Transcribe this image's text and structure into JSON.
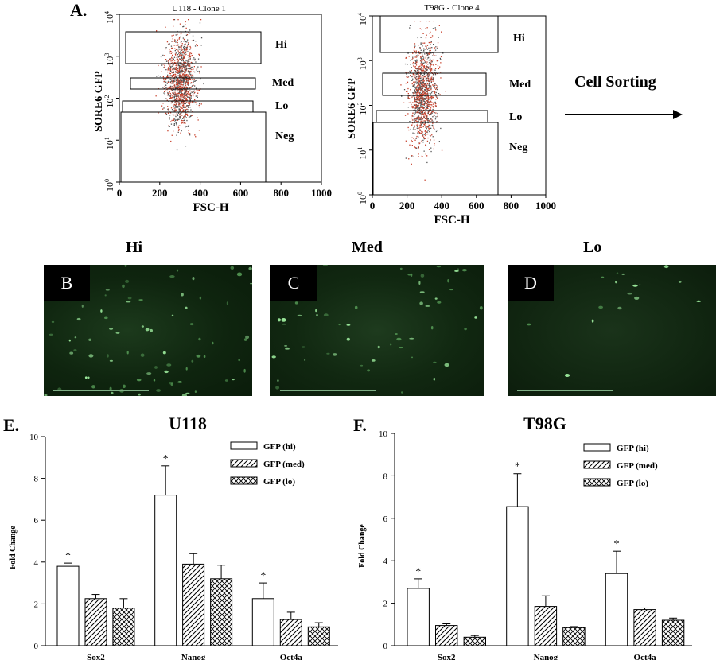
{
  "figure": {
    "panel_A_letter": "A.",
    "panel_E_letter": "E.",
    "panel_F_letter": "F.",
    "cell_sorting_label": "Cell Sorting"
  },
  "flow_panels": [
    {
      "title": "U118 - Clone 1",
      "ylabel": "SORE6 GFP",
      "xlabel": "FSC-H",
      "xticks": [
        "0",
        "200",
        "400",
        "600",
        "800",
        "1000"
      ],
      "gates": [
        "Hi",
        "Med",
        "Lo",
        "Neg"
      ]
    },
    {
      "title": "T98G - Clone 4",
      "ylabel": "SORE6 GFP",
      "xlabel": "FSC-H",
      "xticks": [
        "0",
        "200",
        "400",
        "600",
        "800",
        "1000"
      ],
      "gates": [
        "Hi",
        "Med",
        "Lo",
        "Neg"
      ]
    }
  ],
  "microscopy": [
    {
      "title": "Hi",
      "label": "B"
    },
    {
      "title": "Med",
      "label": "C"
    },
    {
      "title": "Lo",
      "label": "D"
    }
  ],
  "chart_data": [
    {
      "type": "bar",
      "title": "U118",
      "xlabel": "",
      "ylabel": "Fold Change",
      "ylim": [
        0,
        10
      ],
      "yticks": [
        0,
        2,
        4,
        6,
        8,
        10
      ],
      "categories": [
        "Sox2",
        "Nanog",
        "Oct4a"
      ],
      "series": [
        {
          "name": "GFP (hi)",
          "pattern": "none",
          "values": [
            3.8,
            7.2,
            2.25
          ],
          "errors": [
            0.15,
            1.4,
            0.75
          ],
          "significance": [
            "*",
            "*",
            "*"
          ]
        },
        {
          "name": "GFP (med)",
          "pattern": "hatch",
          "values": [
            2.25,
            3.9,
            1.25
          ],
          "errors": [
            0.2,
            0.5,
            0.35
          ],
          "significance": [
            "",
            "",
            ""
          ]
        },
        {
          "name": "GFP (lo)",
          "pattern": "crosshatch",
          "values": [
            1.8,
            3.2,
            0.9
          ],
          "errors": [
            0.45,
            0.65,
            0.2
          ],
          "significance": [
            "",
            "",
            ""
          ]
        }
      ],
      "legend": "top-right"
    },
    {
      "type": "bar",
      "title": "T98G",
      "xlabel": "",
      "ylabel": "Fold Change",
      "ylim": [
        0,
        10
      ],
      "yticks": [
        0,
        2,
        4,
        6,
        8,
        10
      ],
      "categories": [
        "Sox2",
        "Nanog",
        "Oct4a"
      ],
      "series": [
        {
          "name": "GFP (hi)",
          "pattern": "none",
          "values": [
            2.7,
            6.55,
            3.4
          ],
          "errors": [
            0.45,
            1.55,
            1.05
          ],
          "significance": [
            "*",
            "*",
            "*"
          ]
        },
        {
          "name": "GFP (med)",
          "pattern": "hatch",
          "values": [
            0.95,
            1.85,
            1.7
          ],
          "errors": [
            0.08,
            0.5,
            0.08
          ],
          "significance": [
            "",
            "",
            ""
          ]
        },
        {
          "name": "GFP (lo)",
          "pattern": "crosshatch",
          "values": [
            0.4,
            0.85,
            1.2
          ],
          "errors": [
            0.08,
            0.05,
            0.1
          ],
          "significance": [
            "",
            "",
            ""
          ]
        }
      ],
      "legend": "top-right"
    }
  ]
}
